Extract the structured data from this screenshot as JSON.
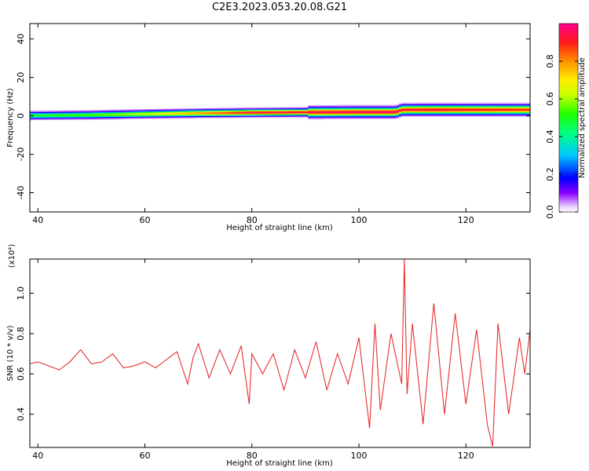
{
  "title": "C2E3.2023.053.20.08.G21",
  "colors": {
    "snr_line": "#e83030",
    "background": "#ffffff",
    "axis": "#000000"
  },
  "chart_data": [
    {
      "type": "heatmap",
      "title": "",
      "xlabel": "Height of straight line (km)",
      "ylabel": "Frequency (Hz)",
      "xlim": [
        38.5,
        132
      ],
      "ylim": [
        -50,
        48
      ],
      "x_ticks": [
        40,
        60,
        80,
        100,
        120
      ],
      "y_ticks": [
        -40,
        -20,
        0,
        20,
        40
      ],
      "grid": false,
      "colorbar": {
        "label": "Normalized spectral amplitude",
        "range": [
          0.0,
          1.0
        ],
        "ticks": [
          "0.0",
          "0.2",
          "0.4",
          "0.6",
          "0.8"
        ]
      },
      "ridge": {
        "x": [
          38.5,
          50,
          60,
          70,
          80,
          90,
          100,
          107,
          108,
          115,
          120,
          125,
          132
        ],
        "center_freq": [
          0.0,
          0.3,
          0.8,
          1.2,
          1.5,
          1.7,
          1.8,
          1.8,
          3.0,
          3.0,
          3.0,
          3.0,
          3.0
        ],
        "peak_amplitude": [
          0.5,
          0.55,
          0.65,
          0.8,
          0.95,
          0.95,
          0.97,
          0.97,
          0.93,
          0.95,
          0.93,
          0.92,
          0.9
        ]
      }
    },
    {
      "type": "line",
      "title": "",
      "xlabel": "Height of straight line (km)",
      "ylabel": "SNR (10 * v/v)",
      "y_scale_label": "(x10⁴)",
      "xlim": [
        38.5,
        132
      ],
      "ylim": [
        0.235,
        1.17
      ],
      "x_ticks": [
        40,
        60,
        80,
        100,
        120
      ],
      "y_ticks": [
        0.4,
        0.6,
        0.8,
        1.0
      ],
      "grid": false,
      "series": [
        {
          "x": [
            38.5,
            40,
            42,
            44,
            46,
            48,
            50,
            52,
            54,
            56,
            58,
            60,
            62,
            64,
            66,
            68,
            69,
            70,
            72,
            74,
            76,
            78,
            79.5,
            80,
            82,
            84,
            86,
            88,
            90,
            92,
            94,
            96,
            98,
            100,
            102,
            103,
            104,
            106,
            108,
            108.5,
            109,
            110,
            112,
            114,
            116,
            118,
            120,
            122,
            124,
            125,
            126,
            128,
            130,
            131,
            132
          ],
          "values": [
            0.65,
            0.66,
            0.64,
            0.62,
            0.66,
            0.72,
            0.65,
            0.66,
            0.7,
            0.63,
            0.64,
            0.66,
            0.63,
            0.67,
            0.71,
            0.55,
            0.68,
            0.75,
            0.58,
            0.72,
            0.6,
            0.74,
            0.45,
            0.7,
            0.6,
            0.7,
            0.52,
            0.72,
            0.58,
            0.76,
            0.52,
            0.7,
            0.55,
            0.78,
            0.33,
            0.85,
            0.42,
            0.8,
            0.55,
            1.17,
            0.5,
            0.85,
            0.35,
            0.95,
            0.4,
            0.9,
            0.45,
            0.82,
            0.35,
            0.24,
            0.85,
            0.4,
            0.78,
            0.6,
            0.82
          ]
        }
      ]
    }
  ]
}
